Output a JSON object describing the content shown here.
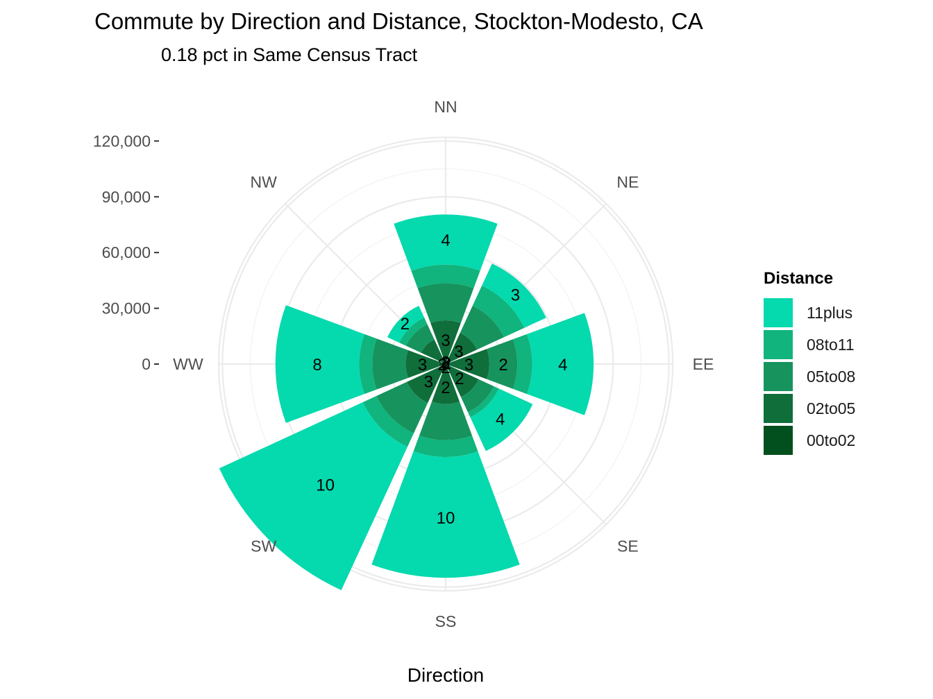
{
  "chart_data": {
    "type": "bar",
    "coord": "polar",
    "title": "Commute by Direction and Distance, Stockton-Modesto, CA",
    "subtitle": "0.18 pct in Same Census Tract",
    "xlabel": "Direction",
    "ylabel": "",
    "categories": [
      "NN",
      "NE",
      "EE",
      "SE",
      "SS",
      "SW",
      "WW",
      "NW"
    ],
    "y_ticks": [
      0,
      30000,
      60000,
      90000,
      120000
    ],
    "y_tick_labels": [
      "0",
      "30,000",
      "60,000",
      "90,000",
      "120,000"
    ],
    "ylim": [
      0,
      122000
    ],
    "stacked": true,
    "grid": true,
    "legend": {
      "title": "Distance",
      "position": "right"
    },
    "series": [
      {
        "name": "00to02",
        "color": "#03501f",
        "values": [
          2500,
          1500,
          1500,
          1500,
          3000,
          3000,
          3500,
          1500
        ],
        "labels": [
          "2",
          "2",
          "",
          "",
          "2",
          "",
          "2",
          ""
        ]
      },
      {
        "name": "02to05",
        "color": "#0f6e3a",
        "values": [
          21000,
          17000,
          22000,
          18000,
          18500,
          20000,
          18000,
          13000
        ],
        "labels": [
          "3",
          "3",
          "3",
          "2",
          "2",
          "3",
          "3",
          ""
        ]
      },
      {
        "name": "05to08",
        "color": "#17935e",
        "values": [
          20000,
          16000,
          15000,
          9000,
          19500,
          18000,
          18000,
          9000
        ],
        "labels": [
          "",
          "",
          "2",
          "",
          "",
          "",
          "",
          ""
        ]
      },
      {
        "name": "08to11",
        "color": "#10b47c",
        "values": [
          10000,
          12000,
          8000,
          3000,
          9000,
          8000,
          7000,
          4000
        ],
        "labels": [
          "",
          "",
          "",
          "",
          "",
          "",
          "",
          ""
        ]
      },
      {
        "name": "11plus",
        "color": "#05d9ae",
        "values": [
          27000,
          13000,
          33000,
          20000,
          65000,
          85000,
          45000,
          7000
        ],
        "labels": [
          "4",
          "3",
          "4",
          "4",
          "10",
          "10",
          "8",
          "2"
        ]
      }
    ],
    "legend_order": [
      "11plus",
      "08to11",
      "05to08",
      "02to05",
      "00to02"
    ]
  }
}
